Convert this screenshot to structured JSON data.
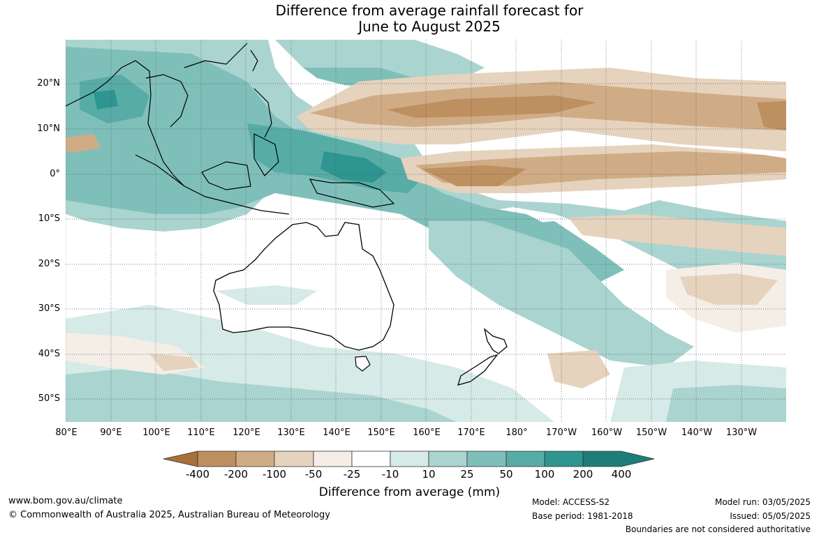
{
  "title": {
    "line1": "Difference from average rainfall forecast for",
    "line2": "June to August 2025"
  },
  "lat_labels": [
    "20°N",
    "10°N",
    "0°",
    "10°S",
    "20°S",
    "30°S",
    "40°S",
    "50°S"
  ],
  "lon_labels": [
    "80°E",
    "90°E",
    "100°E",
    "110°E",
    "120°E",
    "130°E",
    "140°E",
    "150°E",
    "160°E",
    "170°E",
    "180°",
    "170°W",
    "160°W",
    "150°W",
    "140°W",
    "130°W"
  ],
  "colorbar": {
    "tick_labels": [
      "-400",
      "-200",
      "-100",
      "-50",
      "-25",
      "-10",
      "10",
      "25",
      "50",
      "100",
      "200",
      "400"
    ],
    "colors": [
      "#a8713a",
      "#be8f5f",
      "#d0ac86",
      "#e6d3bd",
      "#f4eee7",
      "#ffffff",
      "#d6eae8",
      "#aad4d0",
      "#7fbfba",
      "#58aca6",
      "#2e9590",
      "#1e7d78"
    ],
    "caption": "Difference from average (mm)"
  },
  "footer": {
    "website": "www.bom.gov.au/climate",
    "copyright": "© Commonwealth of Australia 2025, Australian Bureau of Meteorology",
    "model": "Model: ACCESS-S2",
    "base_period": "Base period: 1981-2018",
    "model_run": "Model run: 03/05/2025",
    "issued": "Issued: 05/05/2025",
    "disclaimer": "Boundaries are not considered authoritative"
  }
}
